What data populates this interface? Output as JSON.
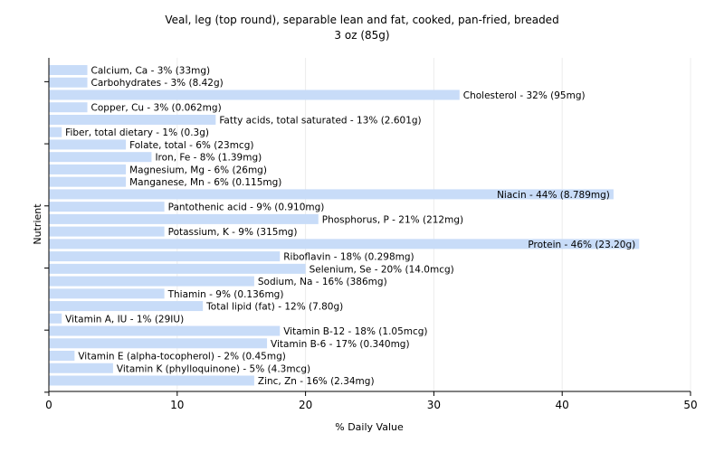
{
  "chart_data": {
    "type": "bar",
    "orientation": "horizontal",
    "title": "Veal, leg (top round), separable lean and fat, cooked, pan-fried, breaded",
    "subtitle": "3 oz (85g)",
    "xlabel": "% Daily Value",
    "ylabel": "Nutrient",
    "xlim": [
      0,
      50
    ],
    "xticks": [
      0,
      10,
      20,
      30,
      40,
      50
    ],
    "grid": true,
    "bar_color": "#c8dcf8",
    "categories": [
      "Calcium, Ca - 3% (33mg)",
      "Carbohydrates - 3% (8.42g)",
      "Cholesterol - 32% (95mg)",
      "Copper, Cu - 3% (0.062mg)",
      "Fatty acids, total saturated - 13% (2.601g)",
      "Fiber, total dietary - 1% (0.3g)",
      "Folate, total - 6% (23mcg)",
      "Iron, Fe - 8% (1.39mg)",
      "Magnesium, Mg - 6% (26mg)",
      "Manganese, Mn - 6% (0.115mg)",
      "Niacin - 44% (8.789mg)",
      "Pantothenic acid - 9% (0.910mg)",
      "Phosphorus, P - 21% (212mg)",
      "Potassium, K - 9% (315mg)",
      "Protein - 46% (23.20g)",
      "Riboflavin - 18% (0.298mg)",
      "Selenium, Se - 20% (14.0mcg)",
      "Sodium, Na - 16% (386mg)",
      "Thiamin - 9% (0.136mg)",
      "Total lipid (fat) - 12% (7.80g)",
      "Vitamin A, IU - 1% (29IU)",
      "Vitamin B-12 - 18% (1.05mcg)",
      "Vitamin B-6 - 17% (0.340mg)",
      "Vitamin E (alpha-tocopherol) - 2% (0.45mg)",
      "Vitamin K (phylloquinone) - 5% (4.3mcg)",
      "Zinc, Zn - 16% (2.34mg)"
    ],
    "values": [
      3,
      3,
      32,
      3,
      13,
      1,
      6,
      8,
      6,
      6,
      44,
      9,
      21,
      9,
      46,
      18,
      20,
      16,
      9,
      12,
      1,
      18,
      17,
      2,
      5,
      16
    ],
    "inside_label_categories": [
      "Niacin - 44% (8.789mg)",
      "Protein - 46% (23.20g)"
    ]
  }
}
